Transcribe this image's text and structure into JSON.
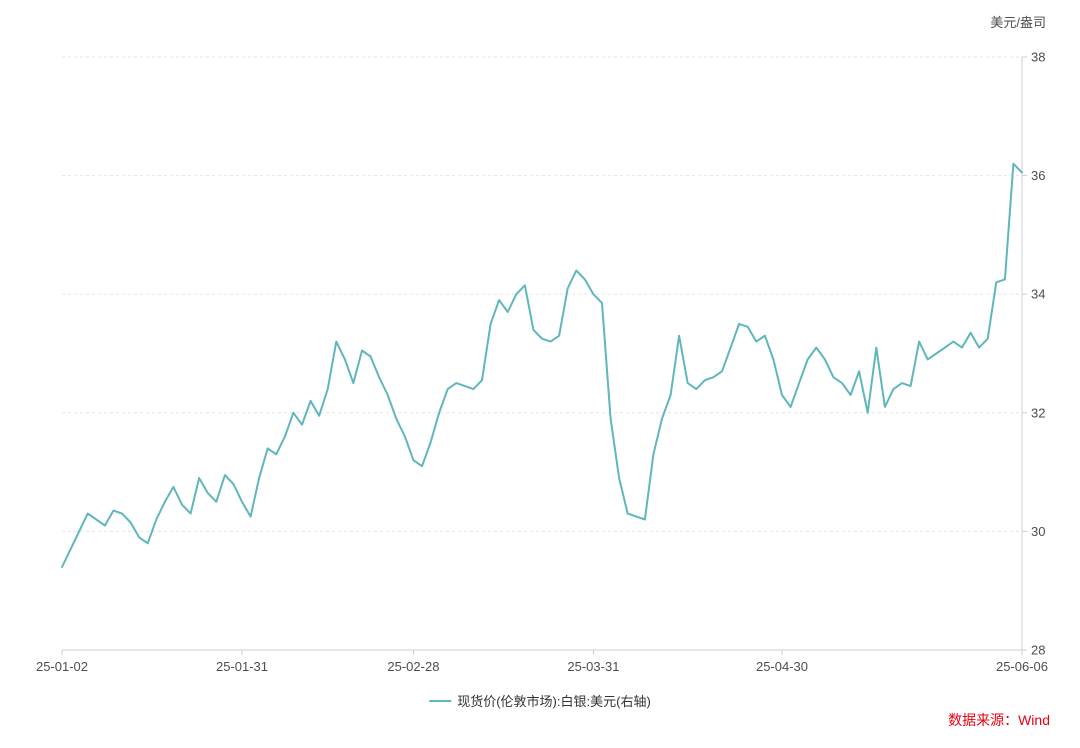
{
  "chart": {
    "unit_label": "美元/盎司",
    "legend_label": "现货价(伦敦市场):白银:美元(右轴)",
    "source_label": "数据来源：Wind",
    "colors": {
      "line": "#5fb6bc",
      "grid": "#e4e4e4",
      "axis": "#cccccc",
      "tick_text": "#4d4d4d",
      "source_text": "#e60012"
    }
  },
  "chart_data": {
    "type": "line",
    "title": "",
    "series_name": "现货价(伦敦市场):白银:美元(右轴)",
    "ylabel": "美元/盎司",
    "xlabel": "",
    "ylim": [
      28,
      38
    ],
    "y_ticks": [
      28,
      30,
      32,
      34,
      36,
      38
    ],
    "grid": "dashed-horizontal",
    "legend_position": "bottom",
    "y_axis_side": "right",
    "x_tick_labels": [
      "25-01-02",
      "25-01-31",
      "25-02-28",
      "25-03-31",
      "25-04-30",
      "25-06-06"
    ],
    "x_tick_indices": [
      0,
      21,
      41,
      62,
      84,
      112
    ],
    "values": [
      29.4,
      29.7,
      30.0,
      30.3,
      30.2,
      30.1,
      30.35,
      30.3,
      30.15,
      29.9,
      29.8,
      30.2,
      30.5,
      30.75,
      30.45,
      30.3,
      30.9,
      30.65,
      30.5,
      30.95,
      30.8,
      30.5,
      30.25,
      30.9,
      31.4,
      31.3,
      31.6,
      32.0,
      31.8,
      32.2,
      31.95,
      32.4,
      33.2,
      32.9,
      32.5,
      33.05,
      32.95,
      32.6,
      32.3,
      31.9,
      31.6,
      31.2,
      31.1,
      31.5,
      32.0,
      32.4,
      32.5,
      32.45,
      32.4,
      32.55,
      33.5,
      33.9,
      33.7,
      34.0,
      34.15,
      33.4,
      33.25,
      33.2,
      33.3,
      34.1,
      34.4,
      34.25,
      34.0,
      33.85,
      31.9,
      30.9,
      30.3,
      30.25,
      30.2,
      31.3,
      31.9,
      32.3,
      33.3,
      32.5,
      32.4,
      32.55,
      32.6,
      32.7,
      33.1,
      33.5,
      33.45,
      33.2,
      33.3,
      32.9,
      32.3,
      32.1,
      32.5,
      32.9,
      33.1,
      32.9,
      32.6,
      32.5,
      32.3,
      32.7,
      32.0,
      33.1,
      32.1,
      32.4,
      32.5,
      32.45,
      33.2,
      32.9,
      33.0,
      33.1,
      33.2,
      33.1,
      33.35,
      33.1,
      33.25,
      34.2,
      34.25,
      36.2,
      36.05
    ]
  }
}
